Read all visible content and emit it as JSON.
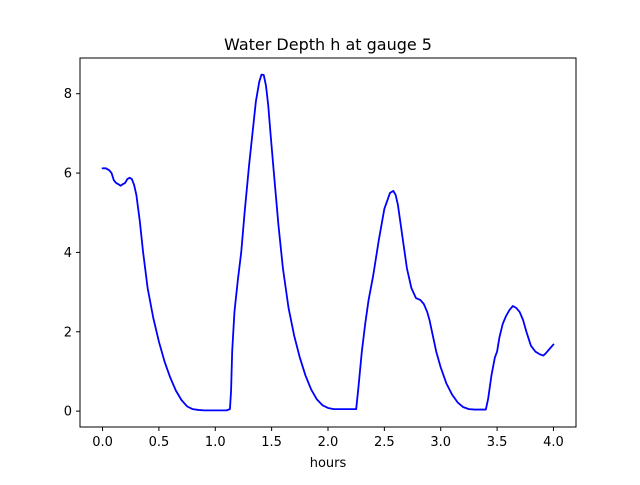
{
  "chart_data": {
    "type": "line",
    "title": "Water Depth h at gauge 5",
    "xlabel": "hours",
    "ylabel": "",
    "xlim": [
      -0.2,
      4.2
    ],
    "ylim": [
      -0.4,
      8.9
    ],
    "xticks": [
      0.0,
      0.5,
      1.0,
      1.5,
      2.0,
      2.5,
      3.0,
      3.5,
      4.0
    ],
    "xtick_labels": [
      "0.0",
      "0.5",
      "1.0",
      "1.5",
      "2.0",
      "2.5",
      "3.0",
      "3.5",
      "4.0"
    ],
    "yticks": [
      0,
      2,
      4,
      6,
      8
    ],
    "ytick_labels": [
      "0",
      "2",
      "4",
      "6",
      "8"
    ],
    "grid": false,
    "series": [
      {
        "color": "#0000ff",
        "x": [
          0.0,
          0.03,
          0.06,
          0.08,
          0.1,
          0.12,
          0.14,
          0.16,
          0.18,
          0.2,
          0.22,
          0.24,
          0.26,
          0.28,
          0.3,
          0.33,
          0.36,
          0.4,
          0.45,
          0.5,
          0.55,
          0.6,
          0.65,
          0.7,
          0.75,
          0.8,
          0.85,
          0.9,
          0.95,
          1.0,
          1.05,
          1.1,
          1.13,
          1.14,
          1.15,
          1.17,
          1.2,
          1.23,
          1.26,
          1.3,
          1.33,
          1.36,
          1.39,
          1.41,
          1.43,
          1.45,
          1.47,
          1.49,
          1.52,
          1.56,
          1.6,
          1.65,
          1.7,
          1.75,
          1.8,
          1.85,
          1.9,
          1.95,
          2.0,
          2.05,
          2.1,
          2.15,
          2.2,
          2.25,
          2.27,
          2.3,
          2.33,
          2.36,
          2.4,
          2.45,
          2.5,
          2.55,
          2.58,
          2.6,
          2.62,
          2.64,
          2.67,
          2.7,
          2.74,
          2.78,
          2.82,
          2.85,
          2.88,
          2.9,
          2.93,
          2.96,
          3.0,
          3.05,
          3.1,
          3.15,
          3.2,
          3.25,
          3.3,
          3.35,
          3.4,
          3.42,
          3.45,
          3.48,
          3.5,
          3.52,
          3.55,
          3.58,
          3.61,
          3.64,
          3.67,
          3.7,
          3.73,
          3.76,
          3.8,
          3.84,
          3.88,
          3.91,
          3.93,
          3.96,
          4.0
        ],
        "y": [
          6.12,
          6.12,
          6.07,
          6.0,
          5.82,
          5.75,
          5.72,
          5.68,
          5.72,
          5.75,
          5.85,
          5.88,
          5.85,
          5.7,
          5.45,
          4.8,
          4.0,
          3.1,
          2.35,
          1.75,
          1.25,
          0.85,
          0.52,
          0.28,
          0.12,
          0.05,
          0.03,
          0.02,
          0.02,
          0.02,
          0.02,
          0.02,
          0.05,
          0.5,
          1.5,
          2.5,
          3.3,
          4.0,
          5.0,
          6.2,
          7.0,
          7.8,
          8.3,
          8.48,
          8.47,
          8.2,
          7.7,
          7.0,
          6.0,
          4.7,
          3.6,
          2.6,
          1.9,
          1.35,
          0.9,
          0.55,
          0.3,
          0.15,
          0.08,
          0.05,
          0.05,
          0.05,
          0.05,
          0.05,
          0.6,
          1.5,
          2.2,
          2.8,
          3.4,
          4.3,
          5.1,
          5.5,
          5.55,
          5.45,
          5.2,
          4.8,
          4.2,
          3.6,
          3.1,
          2.85,
          2.8,
          2.7,
          2.5,
          2.3,
          1.9,
          1.5,
          1.1,
          0.7,
          0.42,
          0.22,
          0.1,
          0.05,
          0.04,
          0.04,
          0.04,
          0.3,
          0.9,
          1.35,
          1.5,
          1.85,
          2.2,
          2.4,
          2.55,
          2.65,
          2.6,
          2.5,
          2.3,
          2.0,
          1.65,
          1.5,
          1.43,
          1.4,
          1.45,
          1.55,
          1.68
        ]
      }
    ]
  }
}
